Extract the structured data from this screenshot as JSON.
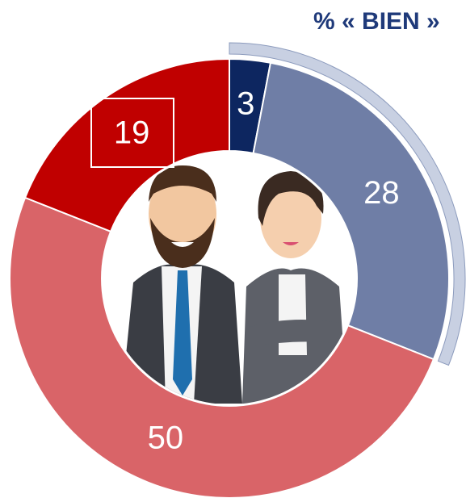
{
  "chart_data": {
    "type": "donut",
    "title": "% « BIEN »",
    "values": [
      3,
      28,
      50,
      19
    ],
    "colors": [
      "#0d2660",
      "#6f7ea6",
      "#d96468",
      "#c00000"
    ]
  }
}
